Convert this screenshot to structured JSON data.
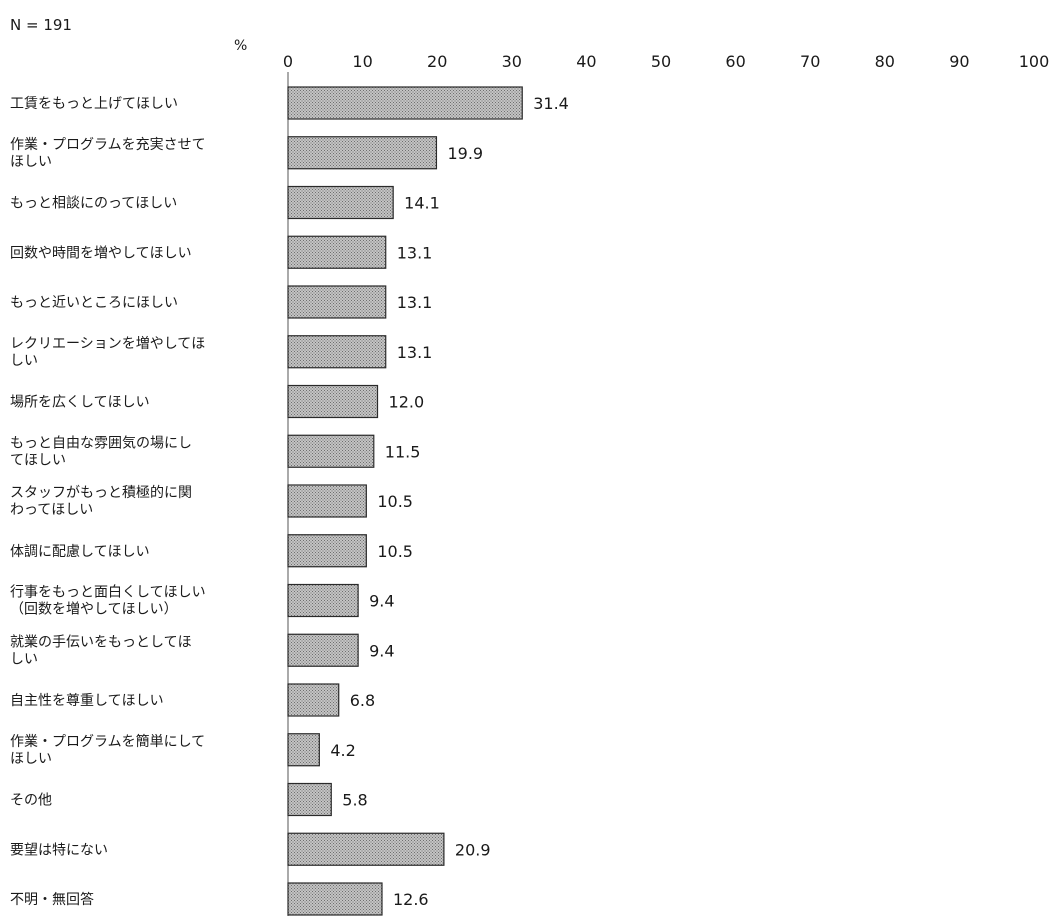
{
  "sample_size": "N = 191",
  "chart_data": {
    "type": "bar",
    "orientation": "horizontal",
    "unit": "%",
    "xlim": [
      0,
      100
    ],
    "ticks": [
      0,
      10,
      20,
      30,
      40,
      50,
      60,
      70,
      80,
      90,
      100
    ],
    "grid": false,
    "bar_color": "#a9a9a9",
    "categories": [
      [
        "工賃をもっと上げてほしい"
      ],
      [
        "作業・プログラムを充実させて",
        "ほしい"
      ],
      [
        "もっと相談にのってほしい"
      ],
      [
        "回数や時間を増やしてほしい"
      ],
      [
        "もっと近いところにほしい"
      ],
      [
        "レクリエーションを増やしてほ",
        "しい"
      ],
      [
        "場所を広くしてほしい"
      ],
      [
        "もっと自由な雰囲気の場にし",
        "てほしい"
      ],
      [
        "スタッフがもっと積極的に関",
        "わってほしい"
      ],
      [
        "体調に配慮してほしい"
      ],
      [
        "行事をもっと面白くしてほしい",
        "（回数を増やしてほしい）"
      ],
      [
        "就業の手伝いをもっとしてほ",
        "しい"
      ],
      [
        "自主性を尊重してほしい"
      ],
      [
        "作業・プログラムを簡単にして",
        "ほしい"
      ],
      [
        "その他"
      ],
      [
        "要望は特にない"
      ],
      [
        "不明・無回答"
      ]
    ],
    "values": [
      31.4,
      19.9,
      14.1,
      13.1,
      13.1,
      13.1,
      12.0,
      11.5,
      10.5,
      10.5,
      9.4,
      9.4,
      6.8,
      4.2,
      5.8,
      20.9,
      12.6
    ],
    "value_labels": [
      "31.4",
      "19.9",
      "14.1",
      "13.1",
      "13.1",
      "13.1",
      "12.0",
      "11.5",
      "10.5",
      "10.5",
      "9.4",
      "9.4",
      "6.8",
      "4.2",
      "5.8",
      "20.9",
      "12.6"
    ]
  }
}
